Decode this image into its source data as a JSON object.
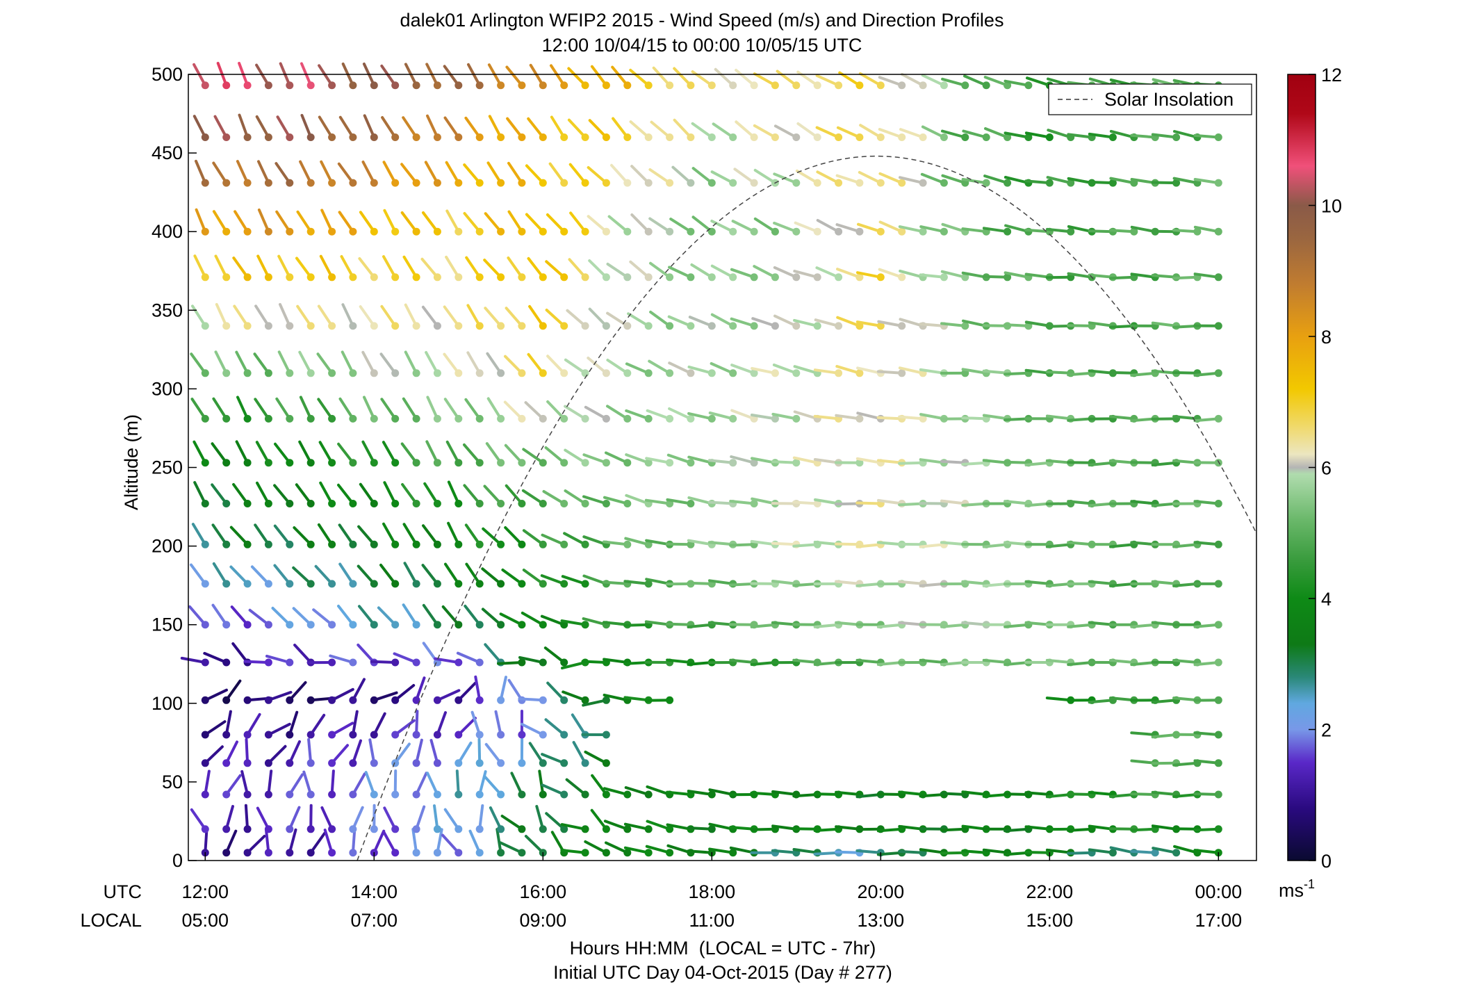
{
  "chart_data": {
    "type": "wind-barb-profile",
    "title": "dalek01 Arlington WFIP2 2015 - Wind Speed (m/s) and Direction Profiles",
    "subtitle": "12:00 10/04/15 to 00:00 10/05/15  UTC",
    "ylabel": "Altitude (m)",
    "ylim": [
      0,
      500
    ],
    "y_ticks": [
      "0",
      "50",
      "100",
      "150",
      "200",
      "250",
      "300",
      "350",
      "400",
      "450",
      "500"
    ],
    "y_tick_values": [
      0,
      50,
      100,
      150,
      200,
      250,
      300,
      350,
      400,
      450,
      500
    ],
    "xlim_hours": [
      11.8,
      24.45
    ],
    "x_tick_hours": [
      12,
      14,
      16,
      18,
      20,
      22,
      24
    ],
    "utc_label": "UTC",
    "local_label": "LOCAL",
    "utc_ticks": [
      "12:00",
      "14:00",
      "16:00",
      "18:00",
      "20:00",
      "22:00",
      "00:00"
    ],
    "local_ticks": [
      "05:00",
      "07:00",
      "09:00",
      "11:00",
      "13:00",
      "15:00",
      "17:00"
    ],
    "xlabel": "Hours HH:MM  (LOCAL = UTC - 7hr)",
    "xlabel2": "Initial UTC Day 04-Oct-2015 (Day # 277)",
    "legend": {
      "label": "Solar Insolation",
      "placement": "top-right"
    },
    "colorbar": {
      "range": [
        0,
        12
      ],
      "ticks": [
        "0",
        "2",
        "4",
        "6",
        "8",
        "10",
        "12"
      ],
      "unit_label": "ms",
      "unit_exp": "-1"
    },
    "heights": [
      5,
      20,
      42,
      62,
      80,
      102,
      126,
      150,
      176,
      201,
      227,
      253,
      281,
      310,
      340,
      371,
      400,
      431,
      460,
      493
    ],
    "time_start_hour": 12.0,
    "time_step_hour": 0.25,
    "time_count": 49,
    "missing": [
      {
        "band": [
          0,
          3
        ],
        "from": 3,
        "to": 4
      },
      {
        "band": [
          3,
          5
        ],
        "from": 17,
        "to": 23
      },
      {
        "band": [
          5,
          6
        ],
        "from": 17.75,
        "to": 19.5
      },
      {
        "band": [
          5,
          6
        ],
        "from": 19.75,
        "to": 22
      }
    ],
    "speed_anchors": [
      {
        "z": 0,
        "t": [
          0.8,
          1.0,
          1.6,
          2.0,
          3.5,
          3.8,
          3.6,
          2.5,
          2.2,
          4.0,
          3.8,
          2.0,
          3.8
        ]
      },
      {
        "z": 20,
        "t": [
          1.2,
          1.4,
          1.8,
          2.2,
          3.2,
          3.8,
          3.6,
          3.8,
          3.6,
          3.5,
          3.6,
          4.2,
          3.8
        ]
      },
      {
        "z": 50,
        "t": [
          1.3,
          1.5,
          2.0,
          2.4,
          3.0,
          3.6,
          3.6,
          3.6,
          3.5,
          3.6,
          3.9,
          4.6,
          5.0
        ]
      },
      {
        "z": 80,
        "t": [
          1.0,
          1.0,
          1.3,
          1.6,
          2.0,
          3.6,
          3.5,
          3.4,
          3.5,
          3.8,
          4.2,
          4.8,
          5.0
        ]
      },
      {
        "z": 100,
        "t": [
          0.6,
          0.6,
          0.8,
          1.2,
          2.2,
          3.8,
          3.8,
          3.6,
          3.6,
          3.8,
          4.0,
          4.4,
          4.8
        ]
      },
      {
        "z": 125,
        "t": [
          0.8,
          1.4,
          1.5,
          1.6,
          3.5,
          4.0,
          4.2,
          4.6,
          5.0,
          5.4,
          5.4,
          5.0,
          5.0
        ]
      },
      {
        "z": 150,
        "t": [
          1.5,
          2.0,
          2.5,
          3.0,
          3.8,
          4.5,
          4.8,
          5.2,
          5.6,
          5.8,
          5.4,
          5.0,
          5.0
        ]
      },
      {
        "z": 200,
        "t": [
          3.0,
          3.2,
          3.4,
          3.8,
          4.4,
          5.0,
          5.4,
          5.9,
          6.2,
          5.8,
          5.2,
          4.8,
          5.0
        ]
      },
      {
        "z": 250,
        "t": [
          3.6,
          3.8,
          4.2,
          4.8,
          5.2,
          5.5,
          5.6,
          5.9,
          6.2,
          5.8,
          5.2,
          4.8,
          5.0
        ]
      },
      {
        "z": 300,
        "t": [
          4.8,
          5.0,
          5.6,
          5.8,
          6.6,
          5.6,
          5.8,
          6.0,
          6.4,
          5.6,
          5.0,
          4.8,
          5.0
        ]
      },
      {
        "z": 350,
        "t": [
          6.5,
          6.6,
          6.5,
          6.5,
          7.2,
          5.8,
          5.6,
          5.8,
          6.8,
          5.4,
          4.9,
          4.8,
          5.0
        ]
      },
      {
        "z": 400,
        "t": [
          8.0,
          8.2,
          7.5,
          7.0,
          7.6,
          6.0,
          5.4,
          5.6,
          6.6,
          5.2,
          4.7,
          4.8,
          5.0
        ]
      },
      {
        "z": 450,
        "t": [
          9.6,
          9.8,
          9.2,
          8.2,
          7.2,
          6.8,
          5.8,
          6.2,
          6.8,
          5.0,
          4.3,
          4.6,
          5.0
        ]
      },
      {
        "z": 500,
        "t": [
          10.8,
          10.4,
          10.0,
          9.6,
          8.4,
          7.5,
          6.4,
          6.6,
          6.8,
          5.2,
          4.6,
          4.8,
          5.0
        ]
      }
    ],
    "direction_anchors": [
      {
        "z": 0,
        "t": [
          140,
          160,
          180,
          200,
          230,
          250,
          260,
          265,
          270,
          265,
          270,
          260,
          255
        ]
      },
      {
        "z": 20,
        "t": [
          190,
          180,
          180,
          190,
          220,
          250,
          262,
          268,
          270,
          268,
          270,
          268,
          268
        ]
      },
      {
        "z": 50,
        "t": [
          160,
          170,
          175,
          180,
          210,
          250,
          262,
          268,
          270,
          268,
          270,
          270,
          270
        ]
      },
      {
        "z": 80,
        "t": [
          150,
          140,
          150,
          160,
          220,
          255,
          262,
          268,
          270,
          270,
          270,
          270,
          270
        ]
      },
      {
        "z": 100,
        "t": [
          110,
          100,
          120,
          130,
          240,
          262,
          268,
          270,
          270,
          270,
          270,
          270,
          270
        ]
      },
      {
        "z": 125,
        "t": [
          240,
          250,
          250,
          240,
          255,
          268,
          270,
          270,
          270,
          270,
          270,
          270,
          270
        ]
      },
      {
        "z": 150,
        "t": [
          215,
          230,
          220,
          215,
          245,
          265,
          270,
          270,
          270,
          270,
          270,
          270,
          270
        ]
      },
      {
        "z": 200,
        "t": [
          215,
          220,
          215,
          210,
          235,
          258,
          265,
          268,
          270,
          270,
          270,
          270,
          270
        ]
      },
      {
        "z": 250,
        "t": [
          210,
          212,
          212,
          210,
          230,
          250,
          258,
          262,
          265,
          268,
          270,
          270,
          270
        ]
      },
      {
        "z": 300,
        "t": [
          210,
          210,
          210,
          210,
          222,
          240,
          250,
          255,
          260,
          265,
          268,
          270,
          270
        ]
      },
      {
        "z": 350,
        "t": [
          210,
          210,
          212,
          215,
          220,
          232,
          245,
          250,
          255,
          262,
          266,
          268,
          268
        ]
      },
      {
        "z": 400,
        "t": [
          208,
          210,
          212,
          215,
          220,
          228,
          238,
          245,
          250,
          258,
          262,
          265,
          265
        ]
      },
      {
        "z": 450,
        "t": [
          205,
          208,
          210,
          212,
          216,
          224,
          232,
          240,
          246,
          252,
          258,
          262,
          262
        ]
      },
      {
        "z": 500,
        "t": [
          202,
          205,
          208,
          210,
          214,
          222,
          228,
          236,
          242,
          248,
          255,
          258,
          260
        ]
      }
    ],
    "insolation_curve": {
      "peak_hour": 19.95,
      "peak_altitude": 448,
      "start_hour": 13.8,
      "end_hour": 24.45
    }
  }
}
